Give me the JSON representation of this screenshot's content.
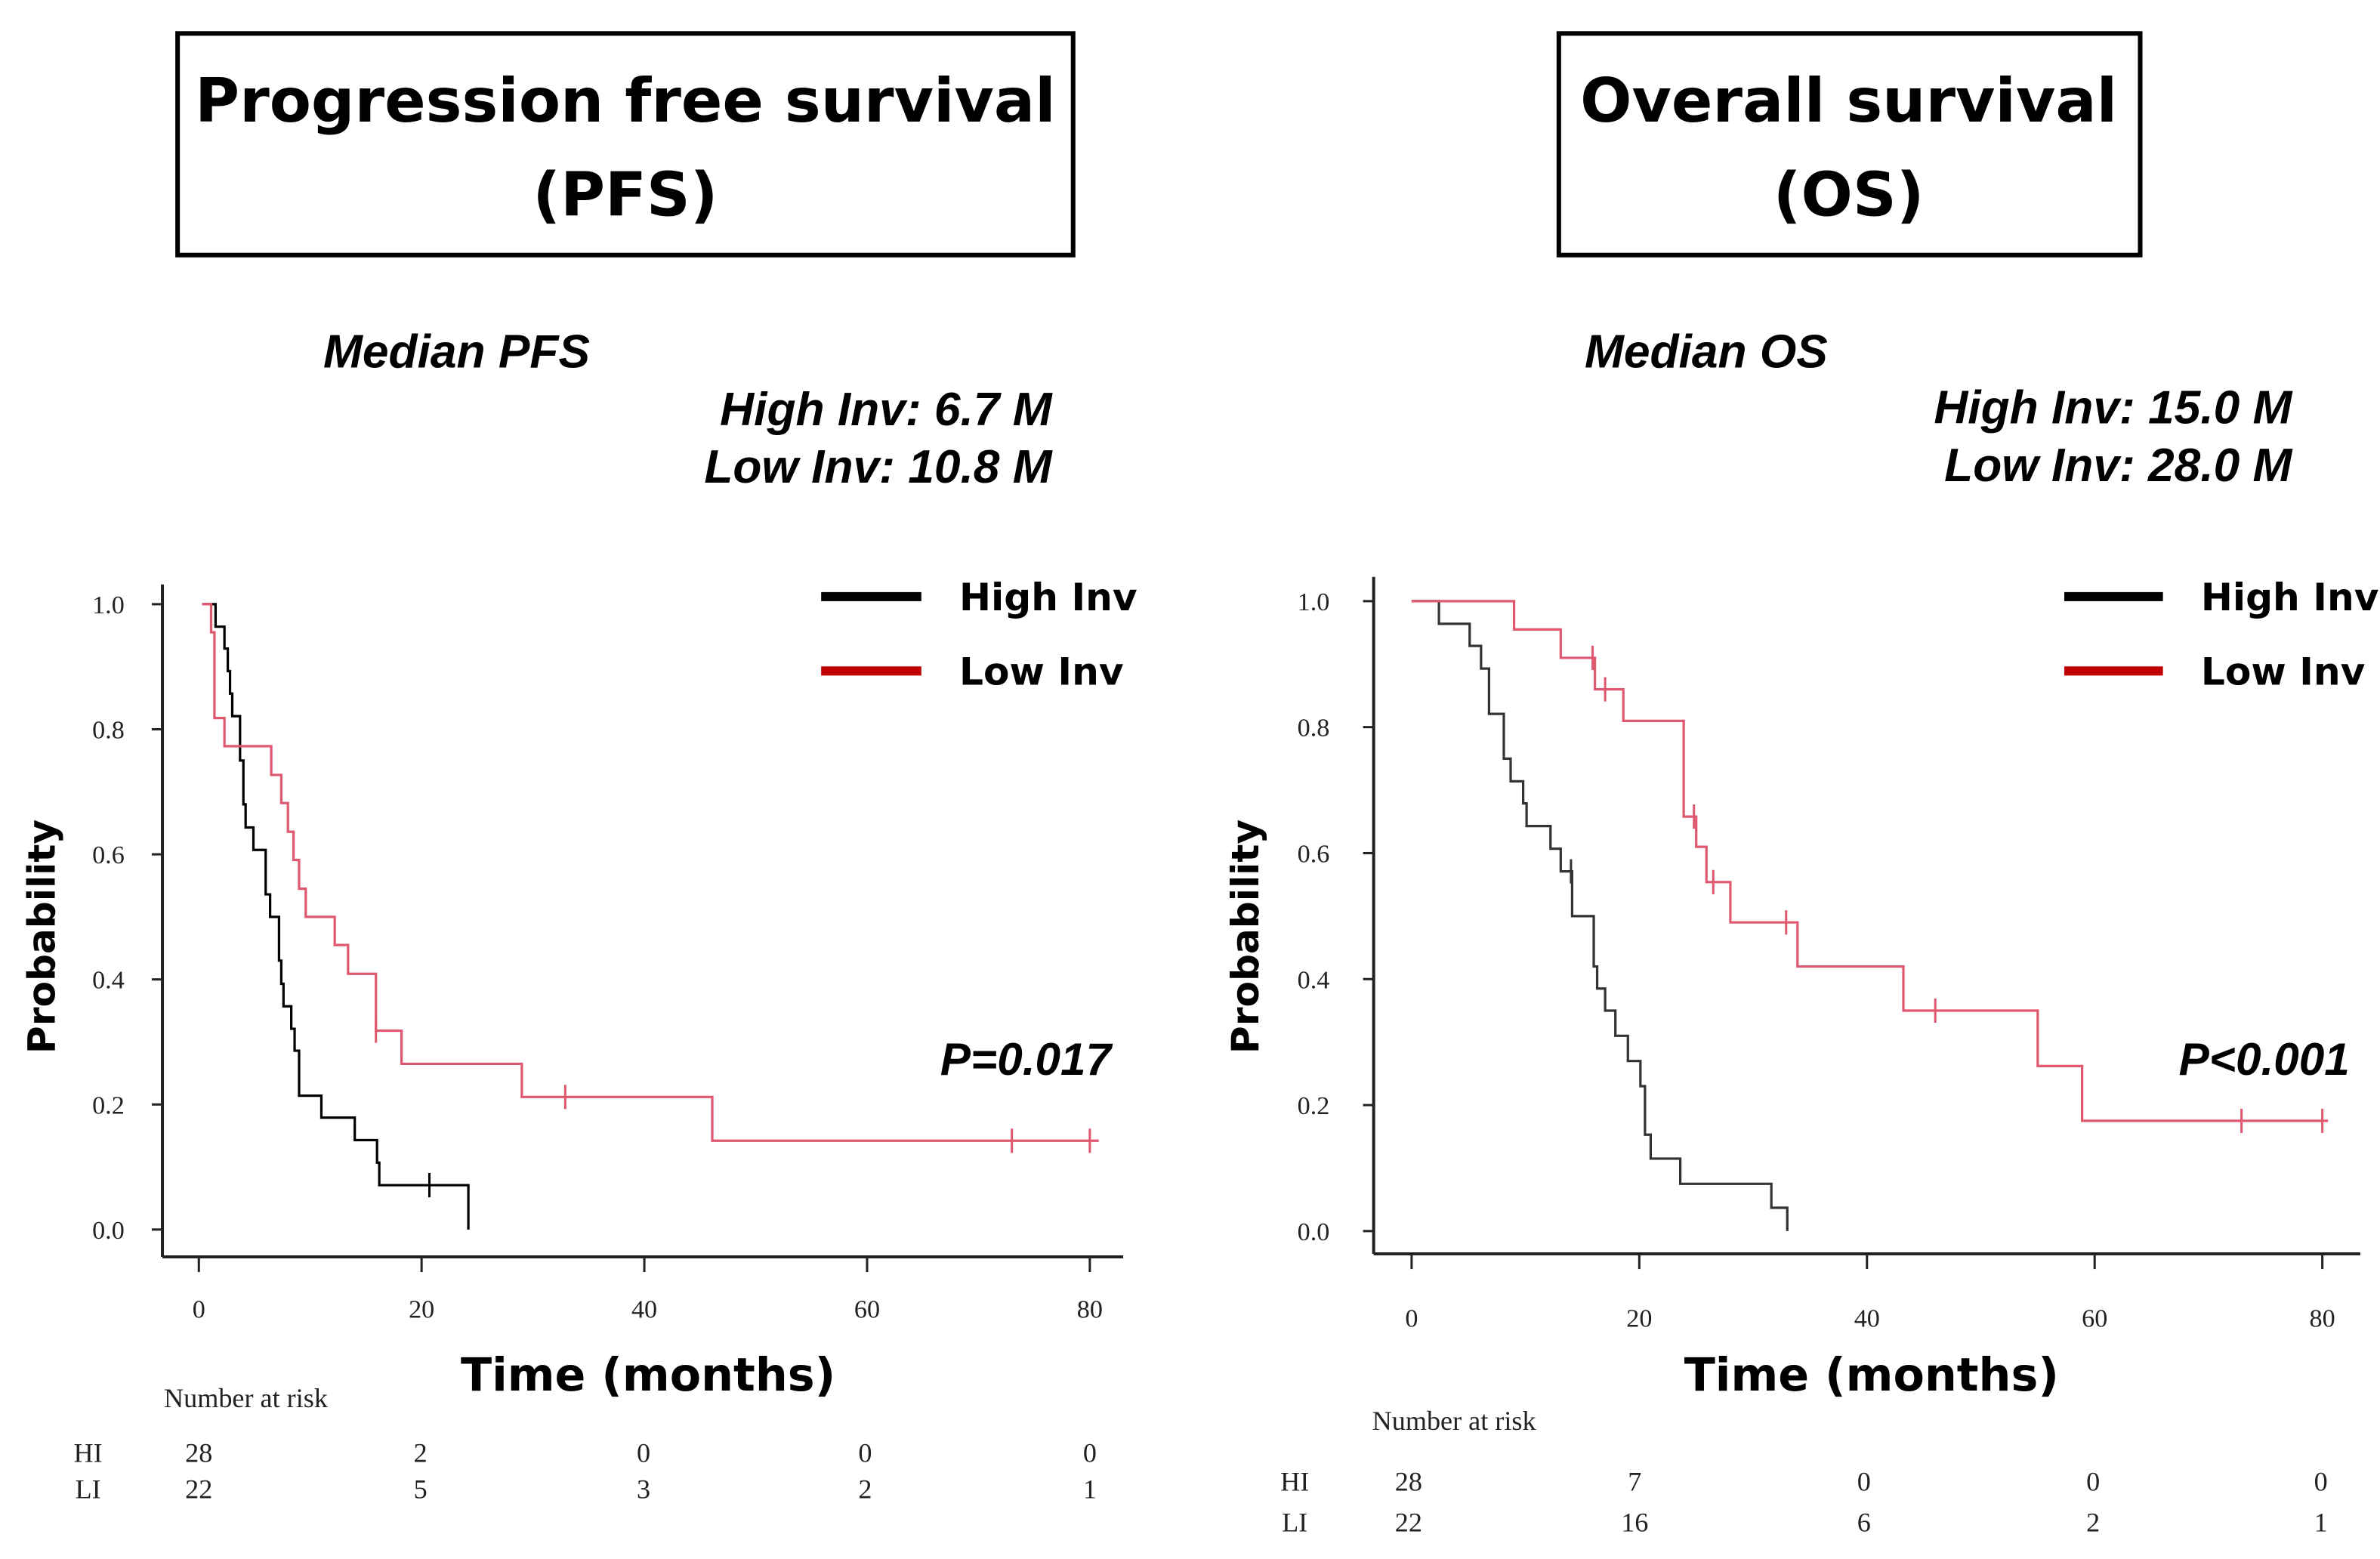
{
  "chart_data": [
    {
      "type": "line",
      "subtype": "kaplan-meier",
      "title_line1": "Progression free survival",
      "title_line2": "(PFS)",
      "median_heading": "Median PFS",
      "median_high": "High Inv: 6.7  M",
      "median_low": "Low Inv: 10.8 M",
      "xlabel": "Time  (months)",
      "ylabel": "Probability",
      "xlim": [
        0,
        80
      ],
      "ylim": [
        0,
        1
      ],
      "xticks": [
        "0",
        "20",
        "40",
        "60",
        "80"
      ],
      "yticks": [
        "0.0",
        "0.2",
        "0.4",
        "0.6",
        "0.8",
        "1.0"
      ],
      "legend": [
        "High Inv",
        "Low  Inv"
      ],
      "legend_position": "top-right",
      "p_value": "P=0.017",
      "risk_title": "Number at risk",
      "risk_rows": [
        {
          "label": "HI",
          "values": [
            "28",
            "2",
            "0",
            "0",
            "0"
          ]
        },
        {
          "label": "LI",
          "values": [
            "22",
            "5",
            "3",
            "2",
            "1"
          ]
        }
      ],
      "series": [
        {
          "name": "High Inv",
          "color": "#000000",
          "steps": [
            [
              0.3,
              1
            ],
            [
              1.5,
              0.964
            ],
            [
              2.3,
              0.929
            ],
            [
              2.6,
              0.893
            ],
            [
              2.8,
              0.857
            ],
            [
              3.0,
              0.821
            ],
            [
              3.7,
              0.75
            ],
            [
              4.0,
              0.68
            ],
            [
              4.2,
              0.643
            ],
            [
              4.9,
              0.607
            ],
            [
              6.0,
              0.536
            ],
            [
              6.4,
              0.5
            ],
            [
              7.2,
              0.43
            ],
            [
              7.4,
              0.393
            ],
            [
              7.6,
              0.357
            ],
            [
              8.3,
              0.321
            ],
            [
              8.6,
              0.286
            ],
            [
              9.0,
              0.214
            ],
            [
              11.0,
              0.179
            ],
            [
              14.0,
              0.143
            ],
            [
              16.0,
              0.107
            ],
            [
              16.2,
              0.071
            ],
            [
              24.2,
              0
            ]
          ],
          "end": 24.2,
          "censored": [
            20.7
          ]
        },
        {
          "name": "Low Inv",
          "color": "#e05870",
          "steps": [
            [
              0.3,
              1
            ],
            [
              1.1,
              0.955
            ],
            [
              1.4,
              0.818
            ],
            [
              2.3,
              0.773
            ],
            [
              6.5,
              0.727
            ],
            [
              7.4,
              0.682
            ],
            [
              8.0,
              0.636
            ],
            [
              8.5,
              0.591
            ],
            [
              9.0,
              0.545
            ],
            [
              9.6,
              0.5
            ],
            [
              12.2,
              0.455
            ],
            [
              13.4,
              0.409
            ],
            [
              15.9,
              0.318
            ],
            [
              18.2,
              0.265
            ],
            [
              29.0,
              0.212
            ],
            [
              46.1,
              0.142
            ]
          ],
          "end": 80.8,
          "censored": [
            15.9,
            32.9,
            73.0,
            80.0
          ]
        }
      ]
    },
    {
      "type": "line",
      "subtype": "kaplan-meier",
      "title_line1": "Overall survival",
      "title_line2": "(OS)",
      "median_heading": "Median OS",
      "median_high": "High Inv: 15.0 M",
      "median_low": "Low Inv:   28.0 M",
      "xlabel": "Time  (months)",
      "ylabel": "Probability",
      "xlim": [
        0,
        80
      ],
      "ylim": [
        0,
        1
      ],
      "xticks": [
        "0",
        "20",
        "40",
        "60",
        "80"
      ],
      "yticks": [
        "0.0",
        "0.2",
        "0.4",
        "0.6",
        "0.8",
        "1.0"
      ],
      "legend": [
        "High Inv",
        "Low  Inv"
      ],
      "legend_position": "top-right",
      "p_value": "P<0.001",
      "risk_title": "Number at risk",
      "risk_rows": [
        {
          "label": "HI",
          "values": [
            "28",
            "7",
            "0",
            "0",
            "0"
          ]
        },
        {
          "label": "LI",
          "values": [
            "22",
            "16",
            "6",
            "2",
            "1"
          ]
        }
      ],
      "series": [
        {
          "name": "High Inv",
          "color": "#333333",
          "steps": [
            [
              0,
              1
            ],
            [
              2.4,
              0.964
            ],
            [
              5.1,
              0.929
            ],
            [
              6.1,
              0.893
            ],
            [
              6.8,
              0.821
            ],
            [
              8.1,
              0.75
            ],
            [
              8.7,
              0.714
            ],
            [
              9.8,
              0.679
            ],
            [
              10.1,
              0.643
            ],
            [
              12.2,
              0.607
            ],
            [
              13.1,
              0.571
            ],
            [
              14.1,
              0.5
            ],
            [
              16.0,
              0.42
            ],
            [
              16.3,
              0.385
            ],
            [
              17.0,
              0.35
            ],
            [
              17.9,
              0.31
            ],
            [
              19.0,
              0.27
            ],
            [
              20.1,
              0.23
            ],
            [
              20.5,
              0.153
            ],
            [
              21.0,
              0.115
            ],
            [
              23.6,
              0.075
            ],
            [
              31.6,
              0.037
            ],
            [
              33.0,
              0
            ]
          ],
          "end": 33.0,
          "censored": [
            14.0
          ]
        },
        {
          "name": "Low Inv",
          "color": "#e05870",
          "steps": [
            [
              0,
              1
            ],
            [
              9.0,
              0.955
            ],
            [
              13.1,
              0.91
            ],
            [
              16.1,
              0.86
            ],
            [
              18.6,
              0.81
            ],
            [
              23.9,
              0.658
            ],
            [
              25.0,
              0.61
            ],
            [
              25.9,
              0.554
            ],
            [
              28.0,
              0.49
            ],
            [
              33.9,
              0.42
            ],
            [
              43.2,
              0.35
            ],
            [
              55.0,
              0.262
            ],
            [
              58.9,
              0.175
            ]
          ],
          "end": 80.5,
          "censored": [
            15.9,
            17.0,
            24.8,
            26.5,
            32.9,
            46.0,
            72.9,
            80.0
          ]
        }
      ]
    }
  ]
}
